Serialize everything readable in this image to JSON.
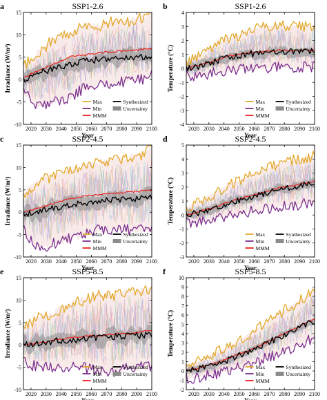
{
  "figure": {
    "series_colors": {
      "Max": "#E3A82B",
      "Min": "#7B2E8E",
      "MMM": "#E8231D",
      "Synthesized": "#000000",
      "Uncertainty": "#8C8C8C",
      "members": [
        "#E58E8E",
        "#8EA8E0",
        "#A6D0A0",
        "#C9A3D6",
        "#E0C28A",
        "#9ED5D9",
        "#D9A3B6",
        "#B4B4E6"
      ]
    },
    "legend_labels": [
      "Max",
      "Min",
      "MMM",
      "Synthesized",
      "Uncertainty"
    ],
    "x_tick_labels": [
      "2020",
      "2030",
      "2040",
      "2050",
      "2060",
      "2070",
      "2080",
      "2090",
      "2100"
    ],
    "xlabel": "Year"
  },
  "chart_data": [
    {
      "panel": "a",
      "title": "SSP1-2.6",
      "type": "line",
      "ylabel": "Irradiance (W/m²)",
      "xlim": [
        2015,
        2100
      ],
      "ylim": [
        -10,
        15
      ],
      "yticks": [
        -10,
        -5,
        0,
        5,
        10,
        15
      ],
      "x": [
        2015,
        2025,
        2035,
        2045,
        2055,
        2065,
        2075,
        2085,
        2095,
        2100
      ],
      "series": [
        {
          "name": "Max",
          "values": [
            3,
            6,
            9,
            10,
            12,
            12,
            13,
            13,
            14,
            15
          ]
        },
        {
          "name": "Min",
          "values": [
            -3,
            -6,
            -5,
            -4,
            -2,
            -1,
            -1,
            0,
            0,
            1
          ]
        },
        {
          "name": "MMM",
          "values": [
            0.5,
            2,
            3.5,
            5,
            5.5,
            6,
            6.2,
            6.5,
            6.8,
            7
          ]
        },
        {
          "name": "Synthesized",
          "values": [
            0,
            1.5,
            2.5,
            3,
            4,
            4.5,
            4.8,
            5,
            5.2,
            5.3
          ]
        },
        {
          "name": "Uncertainty",
          "lower": [
            -1.5,
            0,
            1,
            1.5,
            2.5,
            3,
            3.3,
            3.5,
            3.7,
            3.8
          ],
          "upper": [
            1.5,
            3,
            4,
            4.5,
            5.5,
            6,
            6.3,
            6.5,
            6.7,
            6.8
          ]
        }
      ]
    },
    {
      "panel": "b",
      "title": "SSP1-2.6",
      "type": "line",
      "ylabel": "Temperature (°C)",
      "xlim": [
        2015,
        2100
      ],
      "ylim": [
        -4,
        4
      ],
      "yticks": [
        -4,
        -3,
        -2,
        -1,
        0,
        1,
        2,
        3,
        4
      ],
      "x": [
        2015,
        2025,
        2035,
        2045,
        2055,
        2065,
        2075,
        2085,
        2095,
        2100
      ],
      "series": [
        {
          "name": "Max",
          "values": [
            0.5,
            1,
            1.8,
            2.2,
            2.6,
            3,
            3.1,
            3,
            3,
            3
          ]
        },
        {
          "name": "Min",
          "values": [
            -0.5,
            -0.5,
            -0.3,
            -0.2,
            0,
            0,
            0.1,
            0.1,
            0.1,
            0.1
          ]
        },
        {
          "name": "MMM",
          "values": [
            0,
            0.3,
            0.6,
            0.9,
            1.1,
            1.2,
            1.3,
            1.3,
            1.3,
            1.3
          ]
        },
        {
          "name": "Synthesized",
          "values": [
            0,
            0.2,
            0.5,
            0.8,
            1,
            1.1,
            1.2,
            1.2,
            1.2,
            1.2
          ]
        },
        {
          "name": "Uncertainty",
          "lower": [
            -0.3,
            -0.1,
            0.2,
            0.5,
            0.7,
            0.8,
            0.9,
            0.9,
            0.9,
            0.9
          ],
          "upper": [
            0.3,
            0.5,
            0.8,
            1.1,
            1.3,
            1.4,
            1.5,
            1.5,
            1.5,
            1.5
          ]
        }
      ]
    },
    {
      "panel": "c",
      "title": "SSP2-4.5",
      "type": "line",
      "ylabel": "Irradiance (W/m²)",
      "xlim": [
        2015,
        2100
      ],
      "ylim": [
        -10,
        15
      ],
      "yticks": [
        -10,
        -5,
        0,
        5,
        10,
        15
      ],
      "x": [
        2015,
        2025,
        2035,
        2045,
        2055,
        2065,
        2075,
        2085,
        2095,
        2100
      ],
      "series": [
        {
          "name": "Max",
          "values": [
            4,
            7,
            8,
            9,
            10,
            11,
            12,
            12,
            13,
            15
          ]
        },
        {
          "name": "Min",
          "values": [
            -4,
            -8,
            -7,
            -6,
            -5,
            -4,
            -4,
            -4,
            -4,
            -4
          ]
        },
        {
          "name": "MMM",
          "values": [
            0,
            1,
            2,
            3,
            3.5,
            4,
            4.2,
            4.5,
            4.8,
            5
          ]
        },
        {
          "name": "Synthesized",
          "values": [
            -0.5,
            0,
            1,
            1.5,
            2,
            2.5,
            2.8,
            3,
            3.2,
            3.3
          ]
        },
        {
          "name": "Uncertainty",
          "lower": [
            -2,
            -1.5,
            -0.5,
            0,
            0.5,
            1,
            1.3,
            1.5,
            1.7,
            1.8
          ],
          "upper": [
            1,
            1.5,
            2.5,
            3,
            3.5,
            4,
            4.3,
            4.5,
            4.7,
            4.8
          ]
        }
      ]
    },
    {
      "panel": "d",
      "title": "SSP2-4.5",
      "type": "line",
      "ylabel": "Temperature (°C)",
      "xlim": [
        2015,
        2100
      ],
      "ylim": [
        -3,
        5
      ],
      "yticks": [
        -3,
        -2,
        -1,
        0,
        1,
        2,
        3,
        4,
        5
      ],
      "x": [
        2015,
        2025,
        2035,
        2045,
        2055,
        2065,
        2075,
        2085,
        2095,
        2100
      ],
      "series": [
        {
          "name": "Max",
          "values": [
            0.5,
            1,
            1.7,
            2.2,
            2.7,
            3.2,
            3.6,
            3.9,
            4.1,
            4.2
          ]
        },
        {
          "name": "Min",
          "values": [
            -0.6,
            -0.5,
            -0.2,
            0,
            0.2,
            0.4,
            0.6,
            0.7,
            0.8,
            0.8
          ]
        },
        {
          "name": "MMM",
          "values": [
            0,
            0.3,
            0.6,
            1,
            1.3,
            1.6,
            1.9,
            2.1,
            2.3,
            2.4
          ]
        },
        {
          "name": "Synthesized",
          "values": [
            0,
            0.2,
            0.5,
            0.9,
            1.2,
            1.5,
            1.8,
            2,
            2.2,
            2.3
          ]
        },
        {
          "name": "Uncertainty",
          "lower": [
            -0.3,
            -0.1,
            0.2,
            0.6,
            0.9,
            1.2,
            1.5,
            1.7,
            1.9,
            2
          ],
          "upper": [
            0.3,
            0.5,
            0.8,
            1.2,
            1.5,
            1.8,
            2.1,
            2.3,
            2.5,
            2.6
          ]
        }
      ]
    },
    {
      "panel": "e",
      "title": "SSP5-8.5",
      "type": "line",
      "ylabel": "Irradiance (W/m²)",
      "xlim": [
        2015,
        2100
      ],
      "ylim": [
        -10,
        15
      ],
      "yticks": [
        -10,
        -5,
        0,
        5,
        10,
        15
      ],
      "x": [
        2015,
        2025,
        2035,
        2045,
        2055,
        2065,
        2075,
        2085,
        2095,
        2100
      ],
      "series": [
        {
          "name": "Max",
          "values": [
            4,
            6,
            7,
            9,
            10,
            11,
            11,
            12,
            12,
            13
          ]
        },
        {
          "name": "Min",
          "values": [
            -4,
            -5,
            -5,
            -5,
            -5,
            -6,
            -6,
            -5,
            -5,
            -5
          ]
        },
        {
          "name": "MMM",
          "values": [
            0,
            0.5,
            1,
            1.5,
            2,
            2,
            2.5,
            2.5,
            3,
            3
          ]
        },
        {
          "name": "Synthesized",
          "values": [
            0,
            0.3,
            0.8,
            1,
            1.3,
            1.5,
            1.8,
            2,
            2.2,
            2.3
          ]
        },
        {
          "name": "Uncertainty",
          "lower": [
            -1.5,
            -1.2,
            -0.7,
            -0.5,
            -0.2,
            0,
            0.3,
            0.5,
            0.7,
            0.8
          ],
          "upper": [
            1.5,
            1.8,
            2.3,
            2.5,
            2.8,
            3,
            3.3,
            3.5,
            3.7,
            3.8
          ]
        }
      ]
    },
    {
      "panel": "f",
      "title": "SSP5-8.5",
      "type": "line",
      "ylabel": "Temperature (°C)",
      "xlim": [
        2015,
        2100
      ],
      "ylim": [
        -2,
        10
      ],
      "yticks": [
        -2,
        -1,
        0,
        1,
        2,
        3,
        4,
        5,
        6,
        7,
        8,
        9,
        10
      ],
      "x": [
        2015,
        2025,
        2035,
        2045,
        2055,
        2065,
        2075,
        2085,
        2095,
        2100
      ],
      "series": [
        {
          "name": "Max",
          "values": [
            0.6,
            1.2,
            2,
            2.8,
            3.8,
            4.8,
            6,
            7,
            8,
            8.6
          ]
        },
        {
          "name": "Min",
          "values": [
            -0.8,
            -0.6,
            -0.3,
            0.1,
            0.6,
            1.2,
            1.8,
            2.5,
            3.2,
            3.5
          ]
        },
        {
          "name": "MMM",
          "values": [
            0,
            0.4,
            0.9,
            1.5,
            2.1,
            2.8,
            3.6,
            4.4,
            5.2,
            5.6
          ]
        },
        {
          "name": "Synthesized",
          "values": [
            0,
            0.3,
            0.8,
            1.3,
            2,
            2.7,
            3.5,
            4.3,
            5,
            5.4
          ]
        },
        {
          "name": "Uncertainty",
          "lower": [
            -0.3,
            0,
            0.5,
            1,
            1.7,
            2.4,
            3.2,
            4,
            4.7,
            5.1
          ],
          "upper": [
            0.3,
            0.6,
            1.1,
            1.6,
            2.3,
            3,
            3.8,
            4.6,
            5.3,
            5.7
          ]
        }
      ]
    }
  ]
}
